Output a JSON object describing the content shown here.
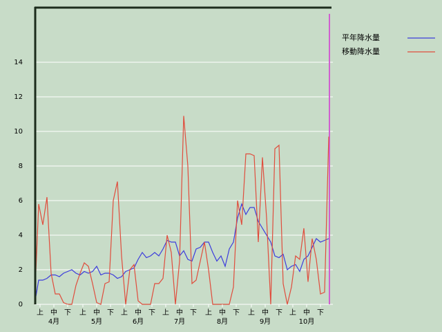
{
  "chart_data": {
    "type": "line",
    "xlim": [
      0,
      214
    ],
    "ylim": [
      0,
      17.2
    ],
    "yticks": [
      0,
      2,
      4,
      6,
      8,
      10,
      12,
      14
    ],
    "grid": true,
    "legend": "top-right",
    "xticks": [
      {
        "value": 4,
        "label": "上"
      },
      {
        "value": 14,
        "label": "中"
      },
      {
        "value": 24,
        "label": "下"
      },
      {
        "value": 35,
        "label": "上"
      },
      {
        "value": 45,
        "label": "中"
      },
      {
        "value": 55,
        "label": "下"
      },
      {
        "value": 65,
        "label": "上"
      },
      {
        "value": 75,
        "label": "中"
      },
      {
        "value": 85,
        "label": "下"
      },
      {
        "value": 95,
        "label": "上"
      },
      {
        "value": 105,
        "label": "中"
      },
      {
        "value": 115,
        "label": "下"
      },
      {
        "value": 126,
        "label": "上"
      },
      {
        "value": 136,
        "label": "中"
      },
      {
        "value": 146,
        "label": "下"
      },
      {
        "value": 157,
        "label": "上"
      },
      {
        "value": 167,
        "label": "中"
      },
      {
        "value": 177,
        "label": "下"
      },
      {
        "value": 187,
        "label": "上"
      },
      {
        "value": 197,
        "label": "中"
      },
      {
        "value": 207,
        "label": "下"
      }
    ],
    "month_labels": [
      {
        "value": 14,
        "label": "4月"
      },
      {
        "value": 45,
        "label": "5月"
      },
      {
        "value": 75,
        "label": "6月"
      },
      {
        "value": 105,
        "label": "7月"
      },
      {
        "value": 136,
        "label": "8月"
      },
      {
        "value": 167,
        "label": "9月"
      },
      {
        "value": 197,
        "label": "10月"
      }
    ],
    "x": [
      0,
      3,
      6,
      9,
      12,
      15,
      18,
      21,
      24,
      27,
      30,
      33,
      36,
      39,
      42,
      45,
      48,
      51,
      54,
      57,
      60,
      63,
      66,
      69,
      72,
      75,
      78,
      81,
      84,
      87,
      90,
      93,
      96,
      99,
      102,
      105,
      108,
      111,
      114,
      117,
      120,
      123,
      126,
      129,
      132,
      135,
      138,
      141,
      144,
      147,
      150,
      153,
      156,
      159,
      162,
      165,
      168,
      171,
      174,
      177,
      180,
      183,
      186,
      189,
      192,
      195,
      198,
      201,
      204,
      207,
      210,
      213
    ],
    "series": [
      {
        "name": "平年降水量",
        "color": "#3c3cdc",
        "values": [
          0,
          1.4,
          1.4,
          1.5,
          1.7,
          1.7,
          1.6,
          1.8,
          1.9,
          2.0,
          1.8,
          1.7,
          1.9,
          1.8,
          1.9,
          2.2,
          1.7,
          1.8,
          1.8,
          1.7,
          1.5,
          1.6,
          1.9,
          2.0,
          2.1,
          2.6,
          3.0,
          2.7,
          2.8,
          3.0,
          2.8,
          3.2,
          3.7,
          3.6,
          3.6,
          2.8,
          3.1,
          2.6,
          2.5,
          3.2,
          3.3,
          3.6,
          3.6,
          3.0,
          2.5,
          2.8,
          2.2,
          3.2,
          3.6,
          5.0,
          5.8,
          5.2,
          5.6,
          5.6,
          4.8,
          4.4,
          4.0,
          3.6,
          2.8,
          2.7,
          2.9,
          2.0,
          2.2,
          2.3,
          1.9,
          2.6,
          2.8,
          3.3,
          3.8,
          3.6,
          3.7,
          3.8
        ]
      },
      {
        "name": "移動降水量",
        "color": "#e04c3c",
        "values": [
          0,
          5.8,
          4.6,
          6.2,
          1.8,
          0.6,
          0.6,
          0.1,
          0,
          0,
          1.1,
          1.8,
          2.4,
          2.2,
          1.2,
          0.1,
          0,
          1.2,
          1.3,
          6.0,
          7.1,
          2.8,
          0,
          2.0,
          2.3,
          0.2,
          0,
          0,
          0,
          1.2,
          1.2,
          1.5,
          4.0,
          3.0,
          0,
          2.5,
          10.9,
          8.0,
          1.2,
          1.4,
          2.5,
          3.6,
          2.0,
          0,
          0,
          0,
          0,
          0,
          1.0,
          6.0,
          4.6,
          8.7,
          8.7,
          8.6,
          3.6,
          8.5,
          5.0,
          0,
          9.0,
          9.2,
          1.2,
          0,
          1.0,
          2.8,
          2.6,
          4.4,
          1.3,
          3.8,
          2.6,
          0.6,
          0.7,
          9.7
        ]
      }
    ]
  }
}
